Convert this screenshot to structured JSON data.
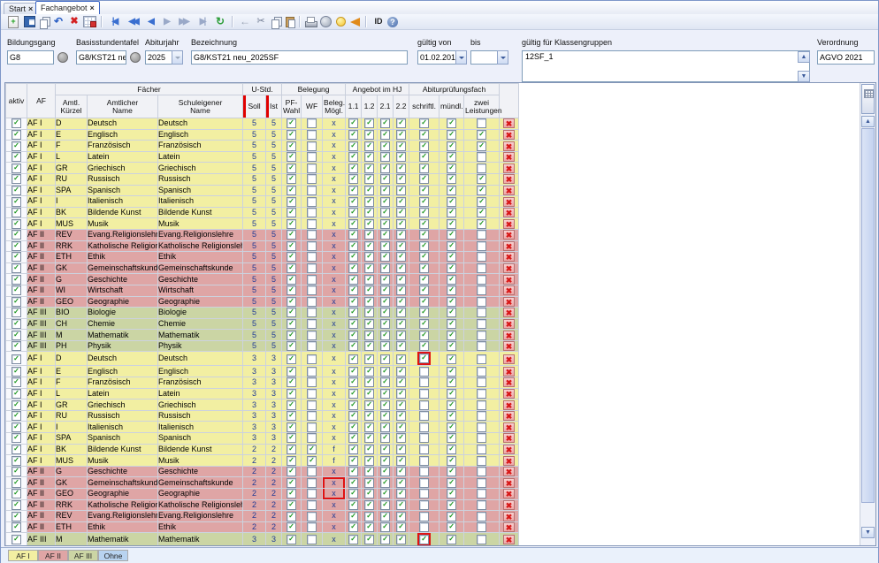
{
  "top_tabs": [
    {
      "label": "Start",
      "active": false
    },
    {
      "label": "Fachangebot",
      "active": true
    }
  ],
  "icons": {
    "close": "×",
    "check": "✓",
    "delete_x": "✖",
    "up": "▲",
    "down": "▼"
  },
  "toolbar": {
    "groups": [
      [
        {
          "name": "new-record-button",
          "kind": "page",
          "glyph": "+"
        },
        {
          "name": "save-button",
          "kind": "floppy",
          "glyph": ""
        },
        {
          "name": "copy-record-button",
          "kind": "pages",
          "glyph": ""
        },
        {
          "name": "undo-button",
          "kind": "undo",
          "glyph": "↶"
        },
        {
          "name": "delete-record-button",
          "kind": "delx",
          "glyph": "✖"
        },
        {
          "name": "grid-edit-button",
          "kind": "gridedit",
          "glyph": ""
        }
      ],
      [
        {
          "name": "first-record-button",
          "kind": "nav tight",
          "glyph": "|◀"
        },
        {
          "name": "fast-back-button",
          "kind": "nav tight",
          "glyph": "◀◀"
        },
        {
          "name": "prev-record-button",
          "kind": "nav",
          "glyph": "◀"
        },
        {
          "name": "next-record-button",
          "kind": "nav dim",
          "glyph": "▶"
        },
        {
          "name": "fast-forward-button",
          "kind": "nav tight dim",
          "glyph": "▶▶"
        },
        {
          "name": "last-record-button",
          "kind": "nav tight dim",
          "glyph": "▶|"
        },
        {
          "name": "refresh-button",
          "kind": "refresh",
          "glyph": "↻"
        }
      ],
      [
        {
          "name": "back-button",
          "kind": "backarrow",
          "glyph": "←"
        },
        {
          "name": "cut-button",
          "kind": "cut",
          "glyph": "✂"
        },
        {
          "name": "copy-button",
          "kind": "pages",
          "glyph": ""
        },
        {
          "name": "paste-button",
          "kind": "paste",
          "glyph": ""
        }
      ],
      [
        {
          "name": "print-button",
          "kind": "printer",
          "glyph": ""
        },
        {
          "name": "export-button",
          "kind": "disk",
          "glyph": ""
        },
        {
          "name": "hint-button",
          "kind": "bulb",
          "glyph": ""
        },
        {
          "name": "announce-button",
          "kind": "horn",
          "glyph": ""
        }
      ],
      [
        {
          "name": "id-button",
          "kind": "idtxt",
          "glyph": "ID"
        },
        {
          "name": "help-button",
          "kind": "help",
          "glyph": "?"
        }
      ]
    ]
  },
  "form": {
    "bildungsgang": {
      "label": "Bildungsgang",
      "value": "G8"
    },
    "basisstundentafel": {
      "label": "Basisstundentafel",
      "value": "G8/KST21 neu"
    },
    "abiturjahr": {
      "label": "Abiturjahr",
      "value": "2025"
    },
    "bezeichnung": {
      "label": "Bezeichnung",
      "value": "G8/KST21 neu_2025SF"
    },
    "gueltig_von": {
      "label": "gültig von",
      "value": "01.02.2019"
    },
    "bis": {
      "label": "bis",
      "value": ""
    },
    "klassengruppen": {
      "label": "gültig für Klassengruppen",
      "value": "12SF_1"
    },
    "verordnung": {
      "label": "Verordnung",
      "value": "AGVO 2021"
    }
  },
  "grid": {
    "groups": {
      "faecher": "Fächer",
      "ustd": "U-Std.",
      "belegung": "Belegung",
      "angebot": "Angebot im HJ",
      "abitur": "Abiturprüfungsfach"
    },
    "cols": {
      "aktiv": "aktiv",
      "af": "AF",
      "kuerzel": "Amtl.\nKürzel",
      "amtlicher": "Amtlicher\nName",
      "schuleigener": "Schuleigener\nName",
      "soll": "Soll",
      "ist": "Ist",
      "pf": "PF-\nWahl",
      "wf": "WF",
      "bm": "Beleg.\nMögl.",
      "h11": "1.1",
      "h12": "1.2",
      "h21": "2.1",
      "h22": "2.2",
      "schr": "schriftl.",
      "muendl": "mündl.",
      "zwei": "zwei\nLeistungen"
    },
    "defaults": {
      "aktiv": true,
      "pf_wahl": true,
      "hj": [
        true,
        true,
        true,
        true
      ],
      "muendlich": true
    },
    "row_fields": [
      "af",
      "group",
      "amtl_kuerzel",
      "amtlicher_name",
      "schuleigener_name",
      "soll",
      "ist",
      "wf",
      "beleg_moegl",
      "schriftlich",
      "zwei_leistungen",
      "highlight"
    ],
    "rows": [
      [
        "AF I",
        1,
        "D",
        "Deutsch",
        "Deutsch",
        "5",
        "5",
        false,
        "x",
        true,
        false,
        ""
      ],
      [
        "AF I",
        1,
        "E",
        "Englisch",
        "Englisch",
        "5",
        "5",
        false,
        "x",
        true,
        true,
        ""
      ],
      [
        "AF I",
        1,
        "F",
        "Französisch",
        "Französisch",
        "5",
        "5",
        false,
        "x",
        true,
        true,
        ""
      ],
      [
        "AF I",
        1,
        "L",
        "Latein",
        "Latein",
        "5",
        "5",
        false,
        "x",
        true,
        false,
        ""
      ],
      [
        "AF I",
        1,
        "GR",
        "Griechisch",
        "Griechisch",
        "5",
        "5",
        false,
        "x",
        true,
        false,
        ""
      ],
      [
        "AF I",
        1,
        "RU",
        "Russisch",
        "Russisch",
        "5",
        "5",
        false,
        "x",
        true,
        true,
        ""
      ],
      [
        "AF I",
        1,
        "SPA",
        "Spanisch",
        "Spanisch",
        "5",
        "5",
        false,
        "x",
        true,
        true,
        ""
      ],
      [
        "AF I",
        1,
        "I",
        "Italienisch",
        "Italienisch",
        "5",
        "5",
        false,
        "x",
        true,
        true,
        ""
      ],
      [
        "AF I",
        1,
        "BK",
        "Bildende Kunst",
        "Bildende Kunst",
        "5",
        "5",
        false,
        "x",
        true,
        true,
        ""
      ],
      [
        "AF I",
        1,
        "MUS",
        "Musik",
        "Musik",
        "5",
        "5",
        false,
        "x",
        true,
        true,
        ""
      ],
      [
        "AF II",
        2,
        "REV",
        "Evang.Religionslehre",
        "Evang.Religionslehre",
        "5",
        "5",
        false,
        "x",
        true,
        false,
        ""
      ],
      [
        "AF II",
        2,
        "RRK",
        "Katholische Religionsl ...",
        "Katholische Religionslehre",
        "5",
        "5",
        false,
        "x",
        true,
        false,
        ""
      ],
      [
        "AF II",
        2,
        "ETH",
        "Ethik",
        "Ethik",
        "5",
        "5",
        false,
        "x",
        true,
        false,
        ""
      ],
      [
        "AF II",
        2,
        "GK",
        "Gemeinschaftskunde",
        "Gemeinschaftskunde",
        "5",
        "5",
        false,
        "x",
        true,
        false,
        ""
      ],
      [
        "AF II",
        2,
        "G",
        "Geschichte",
        "Geschichte",
        "5",
        "5",
        false,
        "x",
        true,
        false,
        ""
      ],
      [
        "AF II",
        2,
        "WI",
        "Wirtschaft",
        "Wirtschaft",
        "5",
        "5",
        false,
        "x",
        true,
        false,
        ""
      ],
      [
        "AF II",
        2,
        "GEO",
        "Geographie",
        "Geographie",
        "5",
        "5",
        false,
        "x",
        true,
        false,
        ""
      ],
      [
        "AF III",
        3,
        "BIO",
        "Biologie",
        "Biologie",
        "5",
        "5",
        false,
        "x",
        true,
        false,
        ""
      ],
      [
        "AF III",
        3,
        "CH",
        "Chemie",
        "Chemie",
        "5",
        "5",
        false,
        "x",
        true,
        false,
        ""
      ],
      [
        "AF III",
        3,
        "M",
        "Mathematik",
        "Mathematik",
        "5",
        "5",
        false,
        "x",
        true,
        false,
        ""
      ],
      [
        "AF III",
        3,
        "PH",
        "Physik",
        "Physik",
        "5",
        "5",
        false,
        "x",
        true,
        false,
        ""
      ],
      [
        "AF I",
        1,
        "D",
        "Deutsch",
        "Deutsch",
        "3",
        "3",
        false,
        "x",
        true,
        false,
        "schr"
      ],
      [
        "AF I",
        1,
        "E",
        "Englisch",
        "Englisch",
        "3",
        "3",
        false,
        "x",
        false,
        false,
        ""
      ],
      [
        "AF I",
        1,
        "F",
        "Französisch",
        "Französisch",
        "3",
        "3",
        false,
        "x",
        false,
        false,
        ""
      ],
      [
        "AF I",
        1,
        "L",
        "Latein",
        "Latein",
        "3",
        "3",
        false,
        "x",
        false,
        false,
        ""
      ],
      [
        "AF I",
        1,
        "GR",
        "Griechisch",
        "Griechisch",
        "3",
        "3",
        false,
        "x",
        false,
        false,
        ""
      ],
      [
        "AF I",
        1,
        "RU",
        "Russisch",
        "Russisch",
        "3",
        "3",
        false,
        "x",
        false,
        false,
        ""
      ],
      [
        "AF I",
        1,
        "I",
        "Italienisch",
        "Italienisch",
        "3",
        "3",
        false,
        "x",
        false,
        false,
        ""
      ],
      [
        "AF I",
        1,
        "SPA",
        "Spanisch",
        "Spanisch",
        "3",
        "3",
        false,
        "x",
        false,
        false,
        ""
      ],
      [
        "AF I",
        1,
        "BK",
        "Bildende Kunst",
        "Bildende Kunst",
        "2",
        "2",
        true,
        "f",
        false,
        false,
        ""
      ],
      [
        "AF I",
        1,
        "MUS",
        "Musik",
        "Musik",
        "2",
        "2",
        true,
        "f",
        false,
        false,
        ""
      ],
      [
        "AF II",
        2,
        "G",
        "Geschichte",
        "Geschichte",
        "2",
        "2",
        false,
        "x",
        false,
        false,
        ""
      ],
      [
        "AF II",
        2,
        "GK",
        "Gemeinschaftskunde",
        "Gemeinschaftskunde",
        "2",
        "2",
        false,
        "x",
        false,
        false,
        "bm1"
      ],
      [
        "AF II",
        2,
        "GEO",
        "Geographie",
        "Geographie",
        "2",
        "2",
        false,
        "x",
        false,
        false,
        "bm2"
      ],
      [
        "AF II",
        2,
        "RRK",
        "Katholische Religionsl ...",
        "Katholische Religionslehre",
        "2",
        "2",
        false,
        "x",
        false,
        false,
        ""
      ],
      [
        "AF II",
        2,
        "REV",
        "Evang.Religionslehre",
        "Evang.Religionslehre",
        "2",
        "2",
        false,
        "x",
        false,
        false,
        ""
      ],
      [
        "AF II",
        2,
        "ETH",
        "Ethik",
        "Ethik",
        "2",
        "2",
        false,
        "x",
        false,
        false,
        ""
      ],
      [
        "AF III",
        3,
        "M",
        "Mathematik",
        "Mathematik",
        "3",
        "3",
        false,
        "x",
        true,
        false,
        "schr"
      ],
      [
        "",
        3,
        "",
        "",
        "",
        "",
        "",
        false,
        "",
        false,
        false,
        ""
      ]
    ]
  },
  "bottom_tabs": [
    {
      "label": "AF I",
      "color": "#f2efa2"
    },
    {
      "label": "AF II",
      "color": "#dfa5a5"
    },
    {
      "label": "AF III",
      "color": "#cbd5a4"
    },
    {
      "label": "Ohne",
      "color": "#b8d3f0"
    }
  ],
  "colors": {
    "af1": "#f2efa2",
    "af2": "#dfa5a5",
    "af3": "#cbd5a4",
    "highlight": "#e01212",
    "red_bar": "#e00000",
    "check_green": "#18941c"
  }
}
